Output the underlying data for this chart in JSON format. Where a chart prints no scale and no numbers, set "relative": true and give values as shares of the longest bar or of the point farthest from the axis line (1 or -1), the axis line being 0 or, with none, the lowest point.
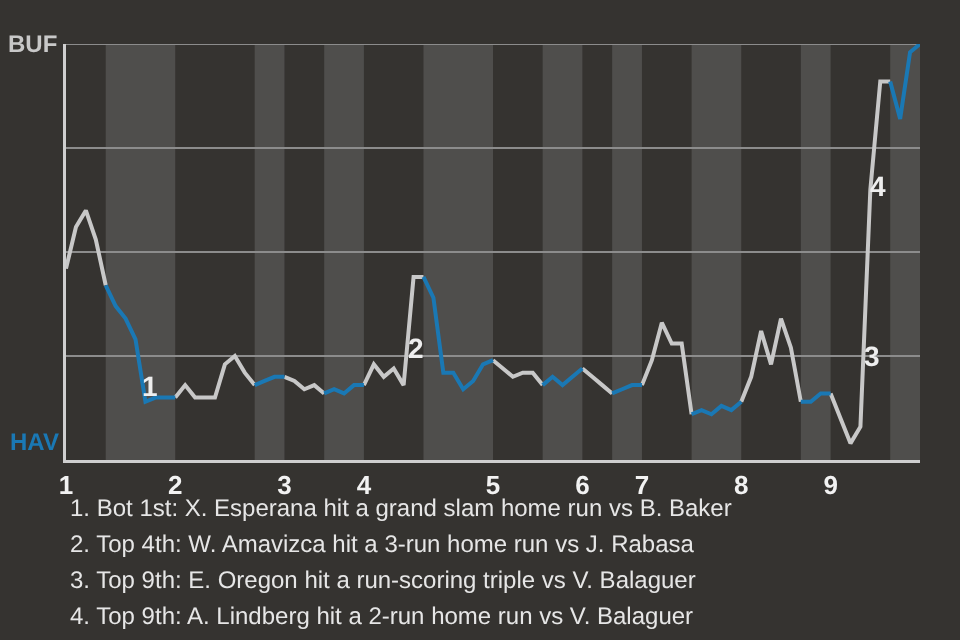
{
  "chart_data": {
    "type": "line",
    "relative": true,
    "categories": [
      "1",
      null,
      null,
      null,
      null,
      null,
      null,
      null,
      null,
      null,
      null,
      "2",
      null,
      null,
      null,
      null,
      null,
      null,
      null,
      null,
      null,
      null,
      "3",
      null,
      null,
      null,
      null,
      null,
      null,
      null,
      "4",
      null,
      null,
      null,
      null,
      null,
      null,
      null,
      null,
      null,
      null,
      null,
      null,
      "5",
      null,
      null,
      null,
      null,
      null,
      null,
      null,
      null,
      "6",
      null,
      null,
      null,
      null,
      null,
      "7",
      null,
      null,
      null,
      null,
      null,
      null,
      null,
      null,
      null,
      "8",
      null,
      null,
      null,
      null,
      null,
      null,
      null,
      null,
      "9",
      null,
      null,
      null,
      null,
      null,
      null,
      null,
      null,
      null
    ],
    "marker": "none",
    "line_style": "solid",
    "series": [
      {
        "name": "BUF",
        "color": "#c8c8c8",
        "values": [
          0.46,
          0.56,
          0.6,
          0.53,
          0.42,
          null,
          null,
          null,
          null,
          null,
          null,
          0.15,
          0.18,
          0.15,
          0.15,
          0.15,
          0.23,
          0.25,
          0.21,
          0.18,
          null,
          null,
          0.2,
          0.19,
          0.17,
          0.18,
          0.16,
          null,
          null,
          null,
          0.18,
          0.23,
          0.2,
          0.22,
          0.18,
          0.44,
          0.44,
          null,
          null,
          null,
          null,
          null,
          null,
          0.24,
          0.22,
          0.2,
          0.21,
          0.21,
          0.18,
          null,
          null,
          null,
          0.22,
          0.2,
          0.18,
          0.16,
          null,
          null,
          0.18,
          0.24,
          0.33,
          0.28,
          0.28,
          0.11,
          null,
          null,
          null,
          null,
          0.14,
          0.2,
          0.31,
          0.23,
          0.34,
          0.27,
          0.14,
          null,
          null,
          0.16,
          0.1,
          0.04,
          0.08,
          0.65,
          0.91,
          0.91,
          null,
          null,
          null
        ]
      },
      {
        "name": "HAV",
        "color": "#1a78b4",
        "values": [
          null,
          null,
          null,
          null,
          0.42,
          0.37,
          0.34,
          0.29,
          0.14,
          0.15,
          0.15,
          0.15,
          null,
          null,
          null,
          null,
          null,
          null,
          null,
          0.18,
          0.19,
          0.2,
          0.2,
          null,
          null,
          null,
          0.16,
          0.17,
          0.16,
          0.18,
          0.18,
          null,
          null,
          null,
          null,
          null,
          0.44,
          0.39,
          0.21,
          0.21,
          0.17,
          0.19,
          0.23,
          0.24,
          null,
          null,
          null,
          null,
          0.18,
          0.2,
          0.18,
          0.2,
          0.22,
          null,
          null,
          0.16,
          0.17,
          0.18,
          0.18,
          null,
          null,
          null,
          null,
          0.11,
          0.12,
          0.11,
          0.13,
          0.12,
          0.14,
          null,
          null,
          null,
          null,
          null,
          0.14,
          0.14,
          0.16,
          0.16,
          null,
          null,
          null,
          null,
          null,
          0.91,
          0.82,
          0.98,
          1.0
        ]
      }
    ],
    "ref_lines": [
      {
        "axis": "y",
        "value": 0.25,
        "color": "#8c8c8c"
      },
      {
        "axis": "y",
        "value": 0.5,
        "color": "#8c8c8c"
      },
      {
        "axis": "y",
        "value": 0.75,
        "color": "#8c8c8c"
      },
      {
        "axis": "y",
        "value": 1,
        "color": "#8c8c8c"
      }
    ],
    "annotations": [
      {
        "text": "1",
        "y": 0.18
      },
      {
        "text": "2",
        "y": 0.27
      },
      {
        "text": "3",
        "y": 0.25
      },
      {
        "text": "4",
        "y": 0.66
      },
      "1. Bot 1st: X. Esperana hit a grand slam home run vs B. Baker",
      "2. Top 4th: W. Amavizca hit a 3-run home run vs J. Rabasa",
      "3. Top 9th: E. Oregon hit a run-scoring triple vs V. Balaguer",
      "4. Top 9th: A. Lindberg hit a 2-run home run vs V. Balaguer"
    ]
  }
}
